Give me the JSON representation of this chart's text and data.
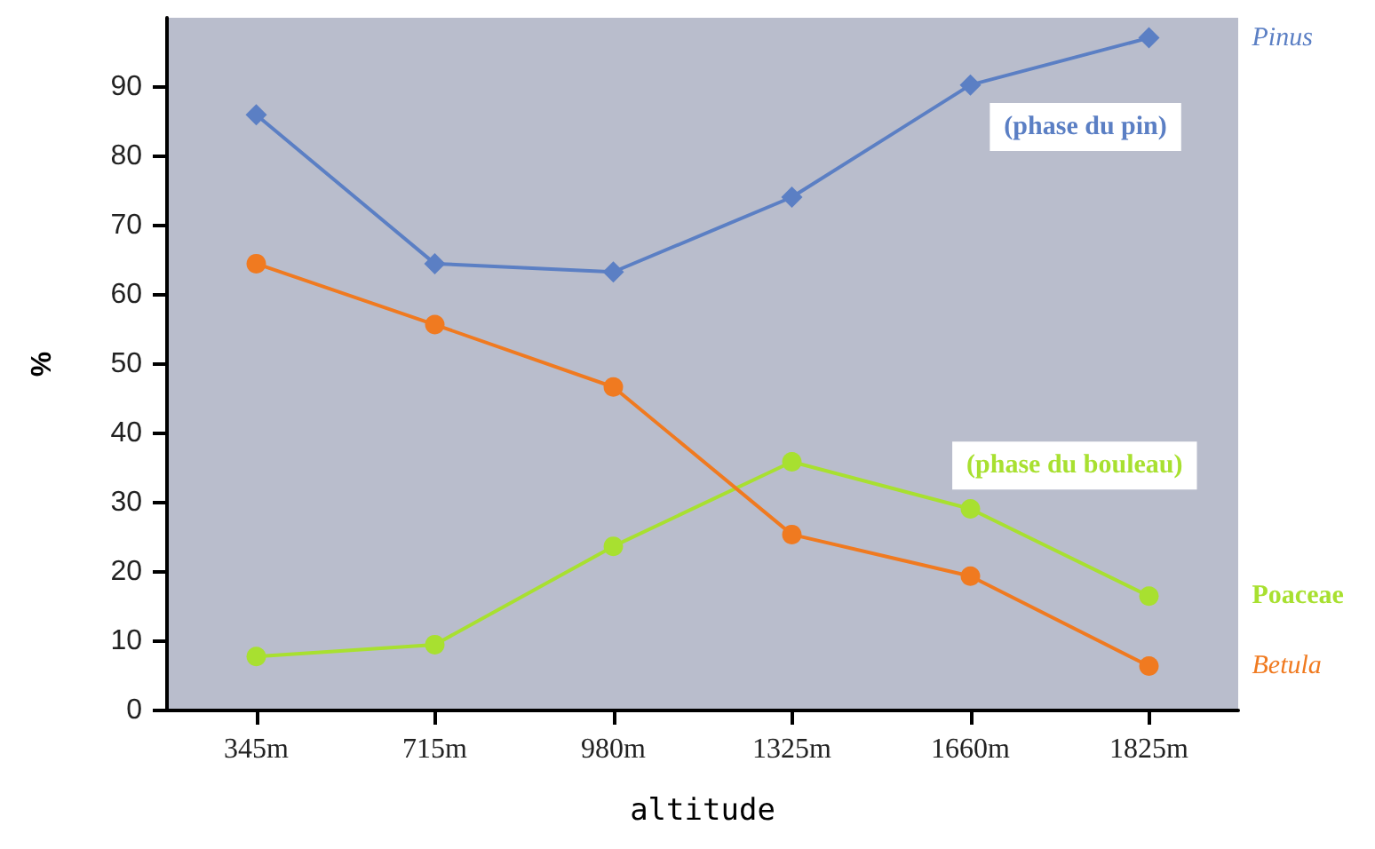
{
  "chart_data": {
    "type": "line",
    "xlabel": "altitude",
    "ylabel": "%",
    "categories": [
      "345m",
      "715m",
      "980m",
      "1325m",
      "1660m",
      "1825m"
    ],
    "series": [
      {
        "name": "Pinus",
        "color": "#5b7fc4",
        "marker": "diamond",
        "values": [
          86,
          64.5,
          63.3,
          74.1,
          90.3,
          97.1
        ]
      },
      {
        "name": "Betula",
        "color": "#f07a20",
        "marker": "circle",
        "values": [
          64.5,
          55.7,
          46.7,
          25.4,
          19.4,
          6.4
        ]
      },
      {
        "name": "Poaceae",
        "color": "#a8e030",
        "marker": "circle",
        "values": [
          7.8,
          9.5,
          23.7,
          35.9,
          29.1,
          16.5
        ]
      }
    ],
    "ylim": [
      0,
      100
    ],
    "yticks": [
      0,
      10,
      20,
      30,
      40,
      50,
      60,
      70,
      80,
      90
    ],
    "annotations": [
      "(phase du pin)",
      "(phase du bouleau)"
    ],
    "grid": false,
    "legend": false
  }
}
